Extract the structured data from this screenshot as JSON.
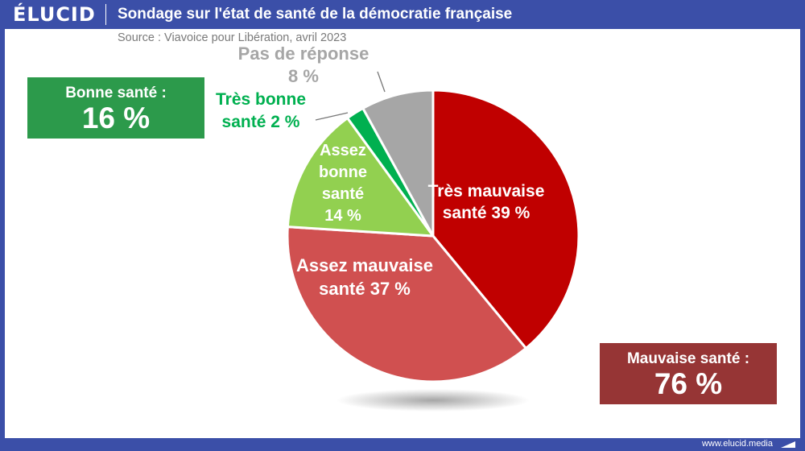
{
  "header": {
    "logo": "ÉLUCID",
    "title": "Sondage sur l'état de santé de la démocratie française"
  },
  "source": "Source : Viavoice pour Libération, avril 2023",
  "footer": {
    "url": "www.elucid.media"
  },
  "boxes": {
    "bonne": {
      "label": "Bonne santé :",
      "value": "16 %",
      "color": "#2c9a4b"
    },
    "mauvaise": {
      "label": "Mauvaise santé :",
      "value": "76 %",
      "color": "#963535"
    }
  },
  "chart_data": {
    "type": "pie",
    "title": "Sondage sur l'état de santé de la démocratie française",
    "slices": [
      {
        "label": "Très mauvaise santé",
        "value": 39,
        "display": [
          "Très mauvaise",
          "santé 39 %"
        ],
        "color": "#c00000"
      },
      {
        "label": "Assez mauvaise santé",
        "value": 37,
        "display": [
          "Assez mauvaise",
          "santé 37 %"
        ],
        "color": "#d05050"
      },
      {
        "label": "Assez bonne santé",
        "value": 14,
        "display": [
          "Assez",
          "bonne",
          "santé",
          "14 %"
        ],
        "color": "#92d050"
      },
      {
        "label": "Très bonne santé",
        "value": 2,
        "display": [
          "Très bonne",
          "santé 2 %"
        ],
        "color": "#00b050"
      },
      {
        "label": "Pas de réponse",
        "value": 8,
        "display": [
          "Pas de réponse",
          "8 %"
        ],
        "color": "#a6a6a6"
      }
    ]
  }
}
